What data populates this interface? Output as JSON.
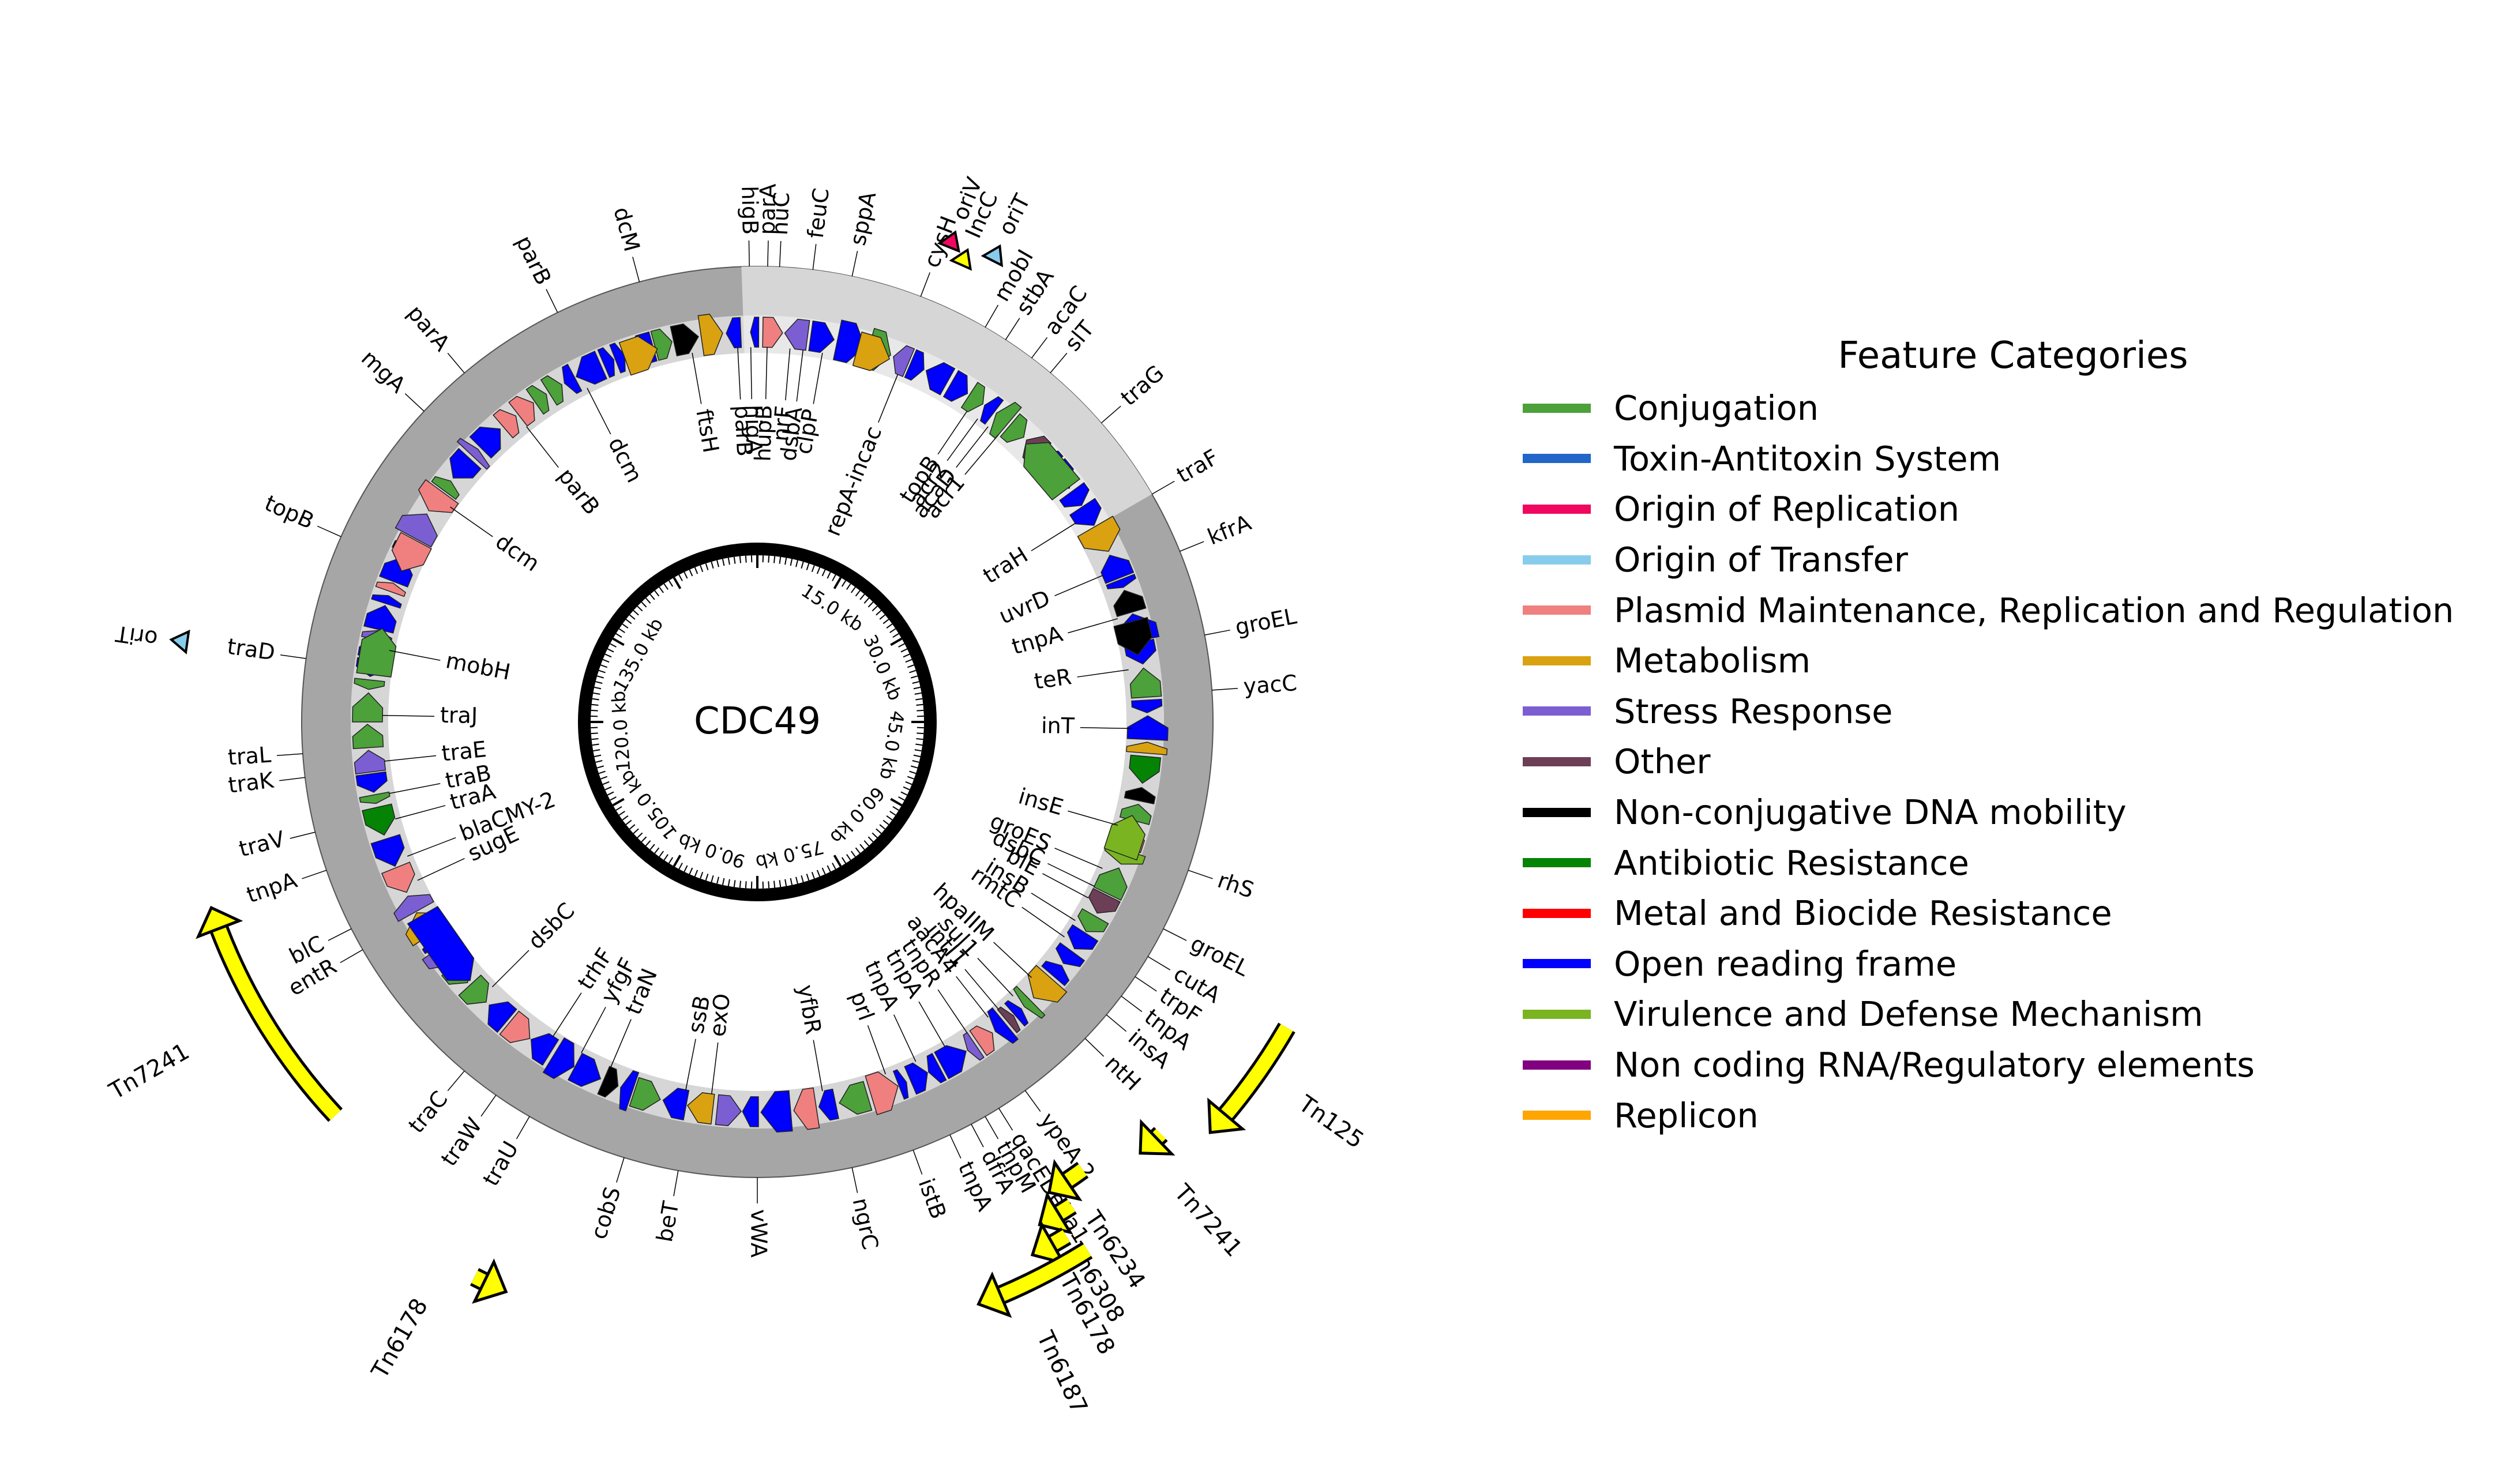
{
  "title": "CDC49",
  "ruler_ticks": [
    "15.0 kb",
    "30.0 kb",
    "45.0 kb",
    "60.0 kb",
    "75.0 kb",
    "90.0 kb",
    "105.0 kb",
    "120.0 kb",
    "135.0 kb"
  ],
  "legend": {
    "title": "Feature Categories",
    "items": [
      {
        "label": "Conjugation",
        "color": "#4ca13a"
      },
      {
        "label": "Toxin-Antitoxin System",
        "color": "#2166c8"
      },
      {
        "label": "Origin of Replication",
        "color": "#f0075f"
      },
      {
        "label": "Origin of Transfer",
        "color": "#88ccec"
      },
      {
        "label": "Plasmid Maintenance, Replication and Regulation",
        "color": "#f08080"
      },
      {
        "label": "Metabolism",
        "color": "#daa210"
      },
      {
        "label": "Stress Response",
        "color": "#7b5fd2"
      },
      {
        "label": "Other",
        "color": "#6d3f57"
      },
      {
        "label": "Non-conjugative DNA mobility",
        "color": "#000000"
      },
      {
        "label": "Antibiotic Resistance",
        "color": "#058305"
      },
      {
        "label": "Metal and Biocide Resistance",
        "color": "#ff0000"
      },
      {
        "label": "Open reading frame",
        "color": "#0000ff"
      },
      {
        "label": "Virulence and Defense Mechanism",
        "color": "#7ab421"
      },
      {
        "label": "Non coding RNA/Regulatory elements",
        "color": "#810181"
      },
      {
        "label": "Replicon",
        "color": "#ffa500"
      }
    ]
  },
  "outer_labels": [
    {
      "text": "dcM",
      "deg": -15
    },
    {
      "text": "higB",
      "deg": -1
    },
    {
      "text": "parA",
      "deg": 1.3
    },
    {
      "text": "nuC",
      "deg": 2.8
    },
    {
      "text": "feuC",
      "deg": 7
    },
    {
      "text": "sppA",
      "deg": 12
    },
    {
      "text": "cysH",
      "deg": 21
    },
    {
      "text": "mobI",
      "deg": 30
    },
    {
      "text": "stbA",
      "deg": 33
    },
    {
      "text": "acaC",
      "deg": 37
    },
    {
      "text": "slT",
      "deg": 40
    },
    {
      "text": "traG",
      "deg": 49
    },
    {
      "text": "traF",
      "deg": 60
    },
    {
      "text": "kfrA",
      "deg": 68
    },
    {
      "text": "groEL",
      "deg": 79
    },
    {
      "text": "yacC",
      "deg": 86
    },
    {
      "text": "rhS",
      "deg": 109
    },
    {
      "text": "groEL",
      "deg": 117
    },
    {
      "text": "cutA",
      "deg": 121
    },
    {
      "text": "trpF",
      "deg": 124
    },
    {
      "text": "tnpA",
      "deg": 127
    },
    {
      "text": "insA",
      "deg": 130
    },
    {
      "text": "ntH",
      "deg": 134
    },
    {
      "text": "ypeA 2",
      "deg": 144
    },
    {
      "text": "qacEDelta1",
      "deg": 148
    },
    {
      "text": "tnpM",
      "deg": 150
    },
    {
      "text": "dfrA",
      "deg": 152
    },
    {
      "text": "tnpA",
      "deg": 155
    },
    {
      "text": "istB",
      "deg": 160
    },
    {
      "text": "ngrC",
      "deg": 168
    },
    {
      "text": "vWA",
      "deg": 180
    },
    {
      "text": "beT",
      "deg": 190
    },
    {
      "text": "cobS",
      "deg": 197
    },
    {
      "text": "traU",
      "deg": 210
    },
    {
      "text": "traW",
      "deg": 215
    },
    {
      "text": "traC",
      "deg": 220
    },
    {
      "text": "entR",
      "deg": 240
    },
    {
      "text": "blC",
      "deg": 243
    },
    {
      "text": "tnpA",
      "deg": 251
    },
    {
      "text": "traV",
      "deg": 256
    },
    {
      "text": "traK",
      "deg": 263
    },
    {
      "text": "traL",
      "deg": 266
    },
    {
      "text": "traD",
      "deg": 278
    },
    {
      "text": "topB",
      "deg": 294
    },
    {
      "text": "mgA",
      "deg": 313
    },
    {
      "text": "parA",
      "deg": 320
    },
    {
      "text": "parB",
      "deg": 334
    }
  ],
  "inner_labels": [
    {
      "text": "ftsH",
      "deg": -10
    },
    {
      "text": "parB",
      "deg": -3
    },
    {
      "text": "higA",
      "deg": -1
    },
    {
      "text": "hupB",
      "deg": 1.5
    },
    {
      "text": "nrF",
      "deg": 5
    },
    {
      "text": "dsbA",
      "deg": 7
    },
    {
      "text": "clpP",
      "deg": 10
    },
    {
      "text": "repA-incac",
      "deg": 22
    },
    {
      "text": "topB",
      "deg": 34
    },
    {
      "text": "acr2",
      "deg": 36
    },
    {
      "text": "acaD",
      "deg": 38
    },
    {
      "text": "acr1",
      "deg": 40
    },
    {
      "text": "traH",
      "deg": 58
    },
    {
      "text": "uvrD",
      "deg": 67
    },
    {
      "text": "tnpA",
      "deg": 74
    },
    {
      "text": "teR",
      "deg": 82
    },
    {
      "text": "inT",
      "deg": 91
    },
    {
      "text": "insE",
      "deg": 106
    },
    {
      "text": "groES",
      "deg": 113
    },
    {
      "text": "dsbC",
      "deg": 116
    },
    {
      "text": "blE",
      "deg": 118
    },
    {
      "text": "insB",
      "deg": 122
    },
    {
      "text": "rmtC",
      "deg": 125
    },
    {
      "text": "hpaIIM",
      "deg": 133
    },
    {
      "text": "sul1",
      "deg": 137
    },
    {
      "text": "intI1",
      "deg": 140
    },
    {
      "text": "aacA4",
      "deg": 142
    },
    {
      "text": "tnpR",
      "deg": 146
    },
    {
      "text": "tnpA",
      "deg": 150
    },
    {
      "text": "tnpA",
      "deg": 155
    },
    {
      "text": "prl",
      "deg": 160
    },
    {
      "text": "yfbR",
      "deg": 170
    },
    {
      "text": "exO",
      "deg": 187
    },
    {
      "text": "ssB",
      "deg": 191
    },
    {
      "text": "traN",
      "deg": 203
    },
    {
      "text": "yfgF",
      "deg": 208
    },
    {
      "text": "trhF",
      "deg": 213
    },
    {
      "text": "dsbC",
      "deg": 225
    },
    {
      "text": "sugE",
      "deg": 245
    },
    {
      "text": "blaCMY-2",
      "deg": 249
    },
    {
      "text": "traA",
      "deg": 255
    },
    {
      "text": "traB",
      "deg": 259
    },
    {
      "text": "traE",
      "deg": 264
    },
    {
      "text": "traJ",
      "deg": 271
    },
    {
      "text": "mobH",
      "deg": 281
    },
    {
      "text": "dcm",
      "deg": 305
    },
    {
      "text": "parB",
      "deg": 322
    },
    {
      "text": "dcm",
      "deg": 333
    }
  ],
  "outside_features": [
    {
      "text": "oriV",
      "deg": 22
    },
    {
      "text": "IncC",
      "deg": 24
    },
    {
      "text": "oriT",
      "deg": 27
    },
    {
      "text": "oriT",
      "deg": 278
    },
    {
      "text": "Tn125",
      "deg": 130
    },
    {
      "text": "Tn7241",
      "deg": 136
    },
    {
      "text": "Tn6234",
      "deg": 146
    },
    {
      "text": "Tn6308",
      "deg": 149
    },
    {
      "text": "Tn6178",
      "deg": 151
    },
    {
      "text": "Tn6187",
      "deg": 153
    },
    {
      "text": "Tn6178",
      "deg": 210
    },
    {
      "text": "Tn7241",
      "deg": 240
    }
  ]
}
